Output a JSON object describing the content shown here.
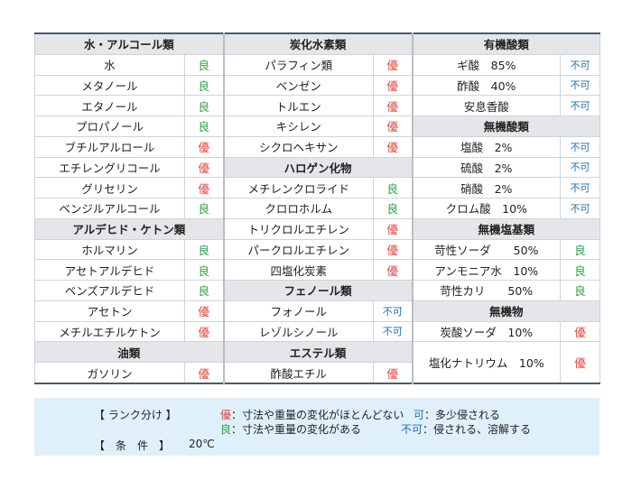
{
  "sections": {
    "water_alcohols": "水・アルコール類",
    "hydrocarbons": "炭化水素類",
    "organic_acids": "有機酸類",
    "halogen": "ハロゲン化物",
    "inorganic_acids": "無機酸類",
    "aldehyde_ketone": "アルデヒド・ケトン類",
    "inorganic_bases": "無機塩基類",
    "phenols": "フェノール類",
    "inorganic": "無機物",
    "oils": "油類",
    "esters": "エステル類"
  },
  "col1": [
    {
      "name": "水",
      "rank": "良"
    },
    {
      "name": "メタノール",
      "rank": "良"
    },
    {
      "name": "エタノール",
      "rank": "良"
    },
    {
      "name": "プロパノール",
      "rank": "良"
    },
    {
      "name": "ブチルアルロール",
      "rank": "優"
    },
    {
      "name": "エチレングリコール",
      "rank": "優"
    },
    {
      "name": "グリセリン",
      "rank": "優"
    },
    {
      "name": "ベンジルアルコール",
      "rank": "良"
    },
    {
      "name": "ホルマリン",
      "rank": "良"
    },
    {
      "name": "アセトアルデヒド",
      "rank": "良"
    },
    {
      "name": "ベンズアルデヒド",
      "rank": "良"
    },
    {
      "name": "アセトン",
      "rank": "優"
    },
    {
      "name": "メチルエチルケトン",
      "rank": "優"
    },
    {
      "name": "ガソリン",
      "rank": "優"
    }
  ],
  "col2": [
    {
      "name": "パラフィン類",
      "rank": "優"
    },
    {
      "name": "ベンゼン",
      "rank": "優"
    },
    {
      "name": "トルエン",
      "rank": "優"
    },
    {
      "name": "キシレン",
      "rank": "優"
    },
    {
      "name": "シクロヘキサン",
      "rank": "優"
    },
    {
      "name": "メチレンクロライド",
      "rank": "良"
    },
    {
      "name": "クロロホルム",
      "rank": "良"
    },
    {
      "name": "トリクロルエチレン",
      "rank": "優"
    },
    {
      "name": "パークロルエチレン",
      "rank": "優"
    },
    {
      "name": "四塩化炭素",
      "rank": "優"
    },
    {
      "name": "フォノール",
      "rank": "不可"
    },
    {
      "name": "レゾルシノール",
      "rank": "不可"
    },
    {
      "name": "酢酸エチル",
      "rank": "優"
    }
  ],
  "col3": [
    {
      "name": "ギ酸　85%",
      "rank": "不可"
    },
    {
      "name": "酢酸　40%",
      "rank": "不可"
    },
    {
      "name": "安息香酸",
      "rank": "不可"
    },
    {
      "name": "塩酸　2%",
      "rank": "不可"
    },
    {
      "name": "硫酸　2%",
      "rank": "不可"
    },
    {
      "name": "硝酸　2%",
      "rank": "不可"
    },
    {
      "name": "クロム酸　10%",
      "rank": "不可"
    },
    {
      "name": "苛性ソーダ　　50%",
      "rank": "良"
    },
    {
      "name": "アンモニア水　10%",
      "rank": "良"
    },
    {
      "name": "苛性カリ　　50%",
      "rank": "良"
    },
    {
      "name": "炭酸ソーダ　10%",
      "rank": "優"
    },
    {
      "name": "塩化ナトリウム　10%",
      "rank": "優"
    }
  ],
  "legend": {
    "rank_label": "【 ランク分け 】",
    "yu": "優",
    "yu_desc": "：寸法や重量の変化がほとんどない",
    "ka": "可",
    "ka_desc": "：多少侵される",
    "ryo": "良",
    "ryo_desc": "：寸法や重量の変化がある",
    "fuka": "不可",
    "fuka_desc": "：侵される、溶解する",
    "cond_label": "【　条　件　】",
    "cond_value": "20℃"
  }
}
